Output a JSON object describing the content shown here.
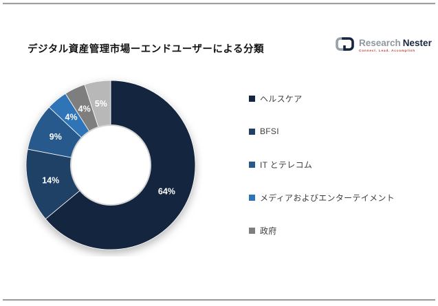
{
  "header": {
    "title": "デジタル資産管理市場ーエンドユーザーによる分類"
  },
  "brand": {
    "word1": "Research",
    "word2": "Nester",
    "tagline": "Connect. Lead. Accomplish",
    "icon": "chain-link-logo-icon",
    "colors": {
      "word1_gray": "#8f969e",
      "word2_navy": "#16243d",
      "tagline_red": "#c13b2f"
    }
  },
  "chart_data": {
    "type": "pie",
    "subtype": "donut",
    "title": "デジタル資産管理市場ーエンドユーザーによる分類",
    "labels_format": "percent",
    "legend_position": "right",
    "start_angle_deg": 0,
    "direction": "clockwise",
    "slices": [
      {
        "label": "ヘルスケア",
        "value": 64,
        "color": "#14253f",
        "in_legend": true
      },
      {
        "label": "BFSI",
        "value": 14,
        "color": "#1f4165",
        "in_legend": true
      },
      {
        "label": "IT とテレコム",
        "value": 9,
        "color": "#28598c",
        "in_legend": true
      },
      {
        "label": "メディアおよびエンターテイメント",
        "value": 4,
        "color": "#2e74b6",
        "in_legend": true
      },
      {
        "label": "政府",
        "value": 4,
        "color": "#7e7e7e",
        "in_legend": true
      },
      {
        "label": "",
        "value": 5,
        "color": "#b8b8b8",
        "in_legend": false
      }
    ]
  },
  "page": {
    "border_color": "#9e9e9e",
    "background": "#ffffff"
  }
}
